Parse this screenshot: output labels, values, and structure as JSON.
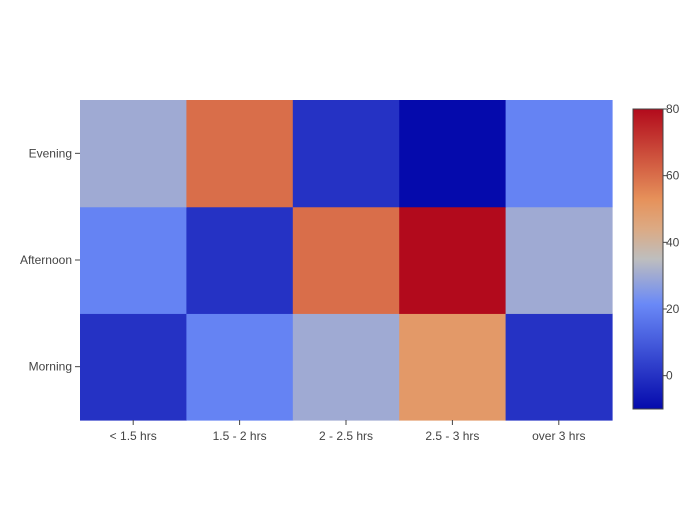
{
  "chart_data": {
    "type": "heatmap",
    "title": "",
    "xlabel": "",
    "ylabel": "",
    "x": [
      "< 1.5 hrs",
      "1.5 - 2 hrs",
      "2 - 2.5 hrs",
      "2.5 - 3 hrs",
      "over 3 hrs"
    ],
    "y": [
      "Morning",
      "Afternoon",
      "Evening"
    ],
    "z": [
      [
        0,
        20,
        30,
        50,
        0
      ],
      [
        20,
        0,
        60,
        80,
        30
      ],
      [
        30,
        60,
        0,
        -10,
        20
      ]
    ],
    "colorscale": "RdBu-reversed (cool-warm)",
    "zrange": [
      -10,
      80
    ],
    "colorbar": {
      "ticks": [
        0,
        20,
        40,
        60,
        80
      ],
      "tick_labels": [
        "0",
        "20",
        "40",
        "60",
        "80"
      ],
      "placement": "right"
    },
    "grid": false
  }
}
